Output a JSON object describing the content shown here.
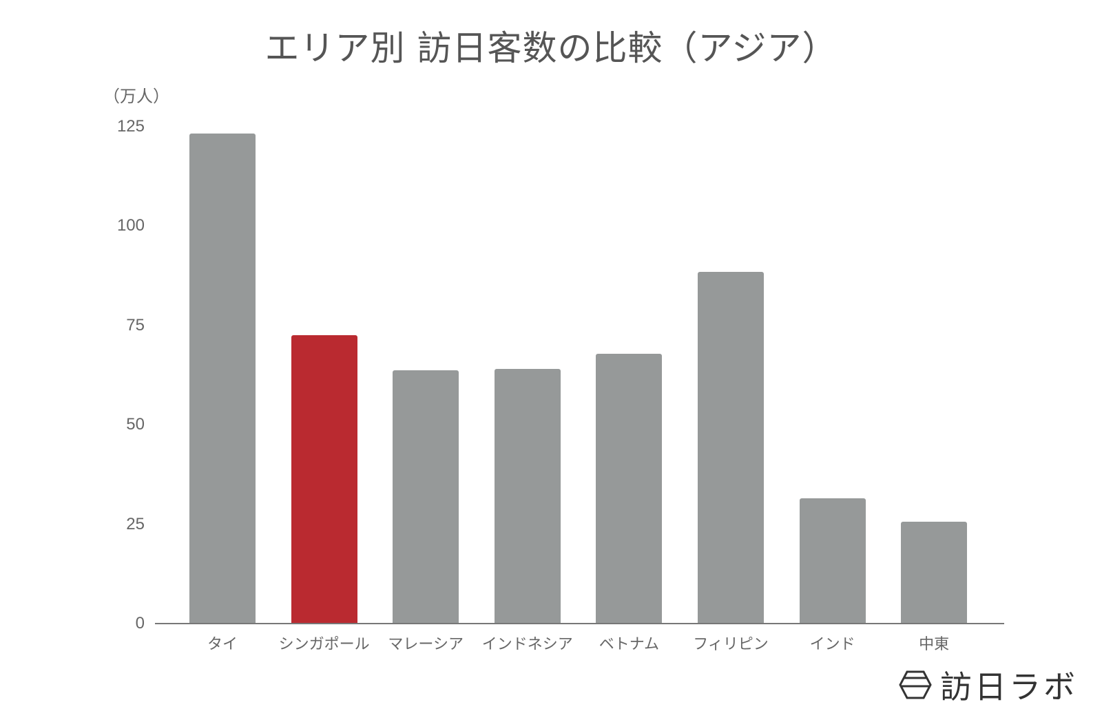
{
  "chart_data": {
    "type": "bar",
    "title": "エリア別 訪日客数の比較（アジア）",
    "ylabel": "（万人）",
    "xlabel": "",
    "categories": [
      "タイ",
      "シンガポール",
      "マレーシア",
      "インドネシア",
      "ベトナム",
      "フィリピン",
      "インド",
      "中東"
    ],
    "values": [
      123.3,
      72.6,
      63.7,
      64.1,
      67.9,
      88.5,
      31.5,
      25.6
    ],
    "highlight_index": 1,
    "colors": {
      "default": "#969999",
      "highlight": "#BA2A30"
    },
    "ylim": [
      0,
      125
    ],
    "yticks": [
      "0",
      "25",
      "50",
      "75",
      "100",
      "125"
    ],
    "grid": false,
    "legend": null
  },
  "branding": {
    "logo_text": "訪日ラボ",
    "logo_icon": "hexagon-logo-icon"
  }
}
